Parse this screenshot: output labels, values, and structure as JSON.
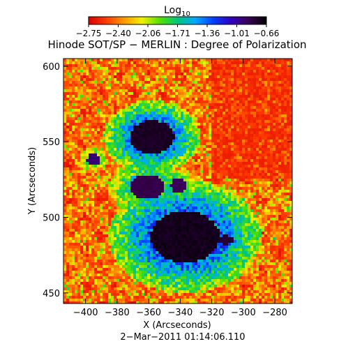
{
  "chart_data": {
    "type": "heatmap",
    "title": "Hinode SOT/SP − MERLIN : Degree of Polarization",
    "colorbar": {
      "label_base": "Log",
      "label_sub": "10",
      "ticks": [
        "−2.75",
        "−2.40",
        "−2.06",
        "−1.71",
        "−1.36",
        "−1.01",
        "−0.66"
      ],
      "range": [
        -2.75,
        -0.66
      ],
      "colormap": [
        "#d80000",
        "#ff3a00",
        "#ff9a00",
        "#f2f000",
        "#55e000",
        "#00c878",
        "#00a8ff",
        "#0040ff",
        "#3000c0",
        "#3a0050",
        "#000000"
      ]
    },
    "xlabel": "X (Arcseconds)",
    "ylabel": "Y (Arcseconds)",
    "xlim": [
      -414,
      -269
    ],
    "ylim": [
      443,
      605
    ],
    "xticks": [
      {
        "v": -400,
        "l": "−400"
      },
      {
        "v": -380,
        "l": "−380"
      },
      {
        "v": -360,
        "l": "−360"
      },
      {
        "v": -340,
        "l": "−340"
      },
      {
        "v": -320,
        "l": "−320"
      },
      {
        "v": -300,
        "l": "−300"
      },
      {
        "v": -280,
        "l": "−280"
      }
    ],
    "yticks": [
      {
        "v": 450,
        "l": "450"
      },
      {
        "v": 500,
        "l": "500"
      },
      {
        "v": 550,
        "l": "550"
      },
      {
        "v": 600,
        "l": "600"
      }
    ],
    "features": [
      {
        "name": "umbra-large",
        "x": -337,
        "y": 487,
        "rx": 22,
        "ry": 17,
        "level": 1.0
      },
      {
        "name": "umbra-upper",
        "x": -358,
        "y": 553,
        "rx": 14,
        "ry": 11,
        "level": 0.95
      },
      {
        "name": "pore-cluster",
        "x": -361,
        "y": 520,
        "rx": 11,
        "ry": 8,
        "level": 0.7
      },
      {
        "name": "pore-right",
        "x": -311,
        "y": 485,
        "rx": 5,
        "ry": 3,
        "level": 0.85
      },
      {
        "name": "pore-mid",
        "x": -341,
        "y": 521,
        "rx": 5,
        "ry": 5,
        "level": 0.6
      },
      {
        "name": "pore-left",
        "x": -395,
        "y": 538,
        "rx": 4,
        "ry": 4,
        "level": 0.5
      }
    ],
    "quiet_region": {
      "x_min": -320,
      "y_min": 525,
      "level": 0.05
    },
    "grid": false
  },
  "footer": {
    "timestamp": "2−Mar−2011 01:14:06.110"
  }
}
